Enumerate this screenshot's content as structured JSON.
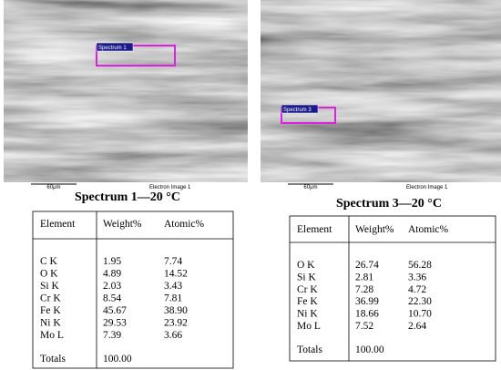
{
  "panels": [
    {
      "marker_label": "Spectrum 1",
      "scale_label": "60μm",
      "image_label": "Electron Image 1",
      "title": "Spectrum 1—20 °C",
      "table": {
        "header": [
          "Element",
          "Weight%",
          "Atomic%"
        ],
        "rows": [
          [
            "C K",
            "1.95",
            "7.74"
          ],
          [
            "O K",
            "4.89",
            "14.52"
          ],
          [
            "Si K",
            "2.03",
            "3.43"
          ],
          [
            "Cr K",
            "8.54",
            "7.81"
          ],
          [
            "Fe K",
            "45.67",
            "38.90"
          ],
          [
            "Ni K",
            "29.53",
            "23.92"
          ],
          [
            "Mo L",
            "7.39",
            "3.66"
          ]
        ],
        "totals": [
          "Totals",
          "100.00"
        ]
      }
    },
    {
      "marker_label": "Spectrum 3",
      "scale_label": "60μm",
      "image_label": "Electron Image 1",
      "title": "Spectrum 3—20 °C",
      "table": {
        "header": [
          "Element",
          "Weight%",
          "Atomic%"
        ],
        "rows": [
          [
            "O K",
            "26.74",
            "56.28"
          ],
          [
            "Si K",
            "2.81",
            "3.36"
          ],
          [
            "Cr K",
            "7.28",
            "4.72"
          ],
          [
            "Fe K",
            "36.99",
            "22.30"
          ],
          [
            "Ni K",
            "18.66",
            "10.70"
          ],
          [
            "Mo L",
            "7.52",
            "2.64"
          ]
        ],
        "totals": [
          "Totals",
          "100.00"
        ]
      }
    }
  ]
}
